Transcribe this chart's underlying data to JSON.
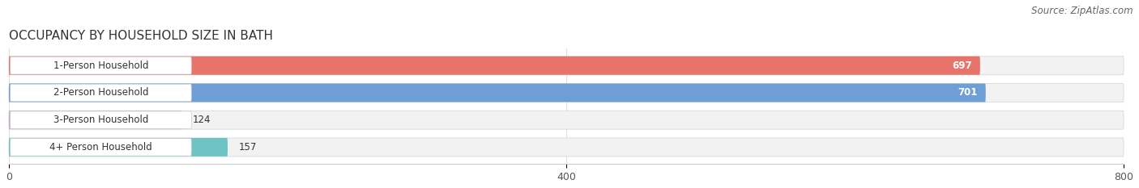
{
  "title": "OCCUPANCY BY HOUSEHOLD SIZE IN BATH",
  "source": "Source: ZipAtlas.com",
  "categories": [
    "1-Person Household",
    "2-Person Household",
    "3-Person Household",
    "4+ Person Household"
  ],
  "values": [
    697,
    701,
    124,
    157
  ],
  "bar_colors": [
    "#E8736A",
    "#6D9ED6",
    "#C4A8C8",
    "#6EC4C4"
  ],
  "xlim": [
    0,
    800
  ],
  "xticks": [
    0,
    400,
    800
  ],
  "background_color": "#ffffff",
  "bar_bg_color": "#f2f2f2",
  "title_fontsize": 11,
  "source_fontsize": 8.5,
  "label_fontsize": 8.5,
  "value_fontsize": 8.5,
  "bar_height": 0.68,
  "bar_gap": 0.18
}
